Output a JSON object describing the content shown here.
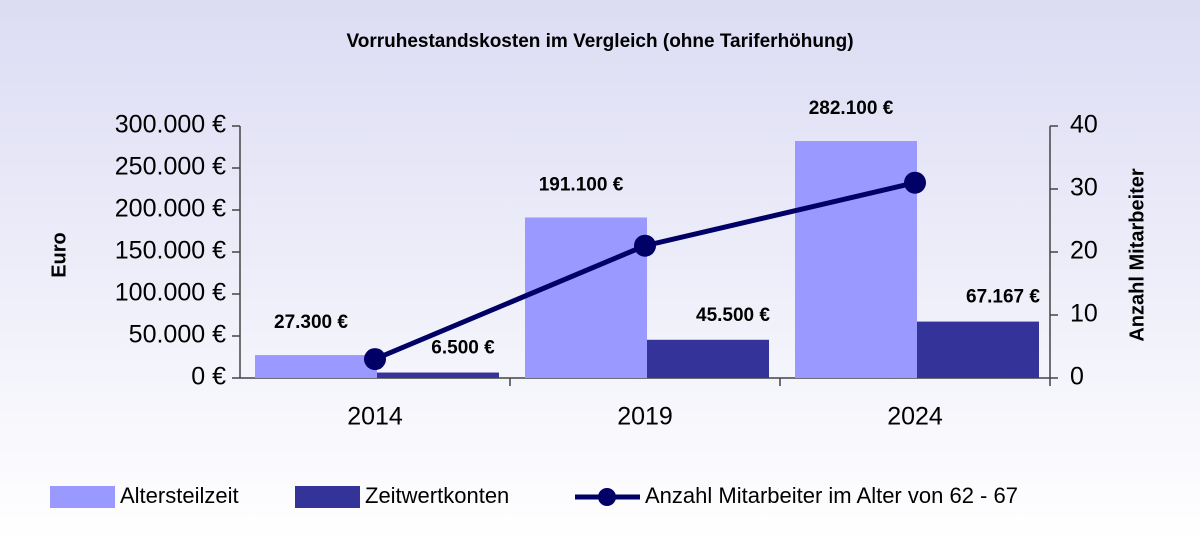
{
  "chart_data": {
    "type": "bar",
    "title": "Vorruhestandskosten im Vergleich (ohne Tariferhöhung)",
    "y_label": "Euro",
    "y2_label": "Anzahl Mitarbeiter",
    "categories": [
      "2014",
      "2019",
      "2024"
    ],
    "series": [
      {
        "name": "Altersteilzeit",
        "type": "bar",
        "color": "#9999ff",
        "values": [
          27300,
          191100,
          282100
        ],
        "value_labels": [
          "27.300 €",
          "191.100 €",
          "282.100 €"
        ]
      },
      {
        "name": "Zeitwertkonten",
        "type": "bar",
        "color": "#333399",
        "values": [
          6500,
          45500,
          67167
        ],
        "value_labels": [
          "6.500 €",
          "45.500 €",
          "67.167 €"
        ]
      },
      {
        "name": "Anzahl Mitarbeiter im Alter von 62 - 67",
        "type": "line",
        "axis": "y2",
        "color": "#000066",
        "values": [
          3,
          21,
          31
        ]
      }
    ],
    "ylim": [
      0,
      300000
    ],
    "yticks": [
      {
        "value": 0,
        "label": "0 €"
      },
      {
        "value": 50000,
        "label": "50.000 €"
      },
      {
        "value": 100000,
        "label": "100.000 €"
      },
      {
        "value": 150000,
        "label": "150.000 €"
      },
      {
        "value": 200000,
        "label": "200.000 €"
      },
      {
        "value": 250000,
        "label": "250.000 €"
      },
      {
        "value": 300000,
        "label": "300.000 €"
      }
    ],
    "y2lim": [
      0,
      40
    ],
    "y2ticks": [
      0,
      10,
      20,
      30,
      40
    ],
    "grid": false,
    "legend": "bottom"
  }
}
